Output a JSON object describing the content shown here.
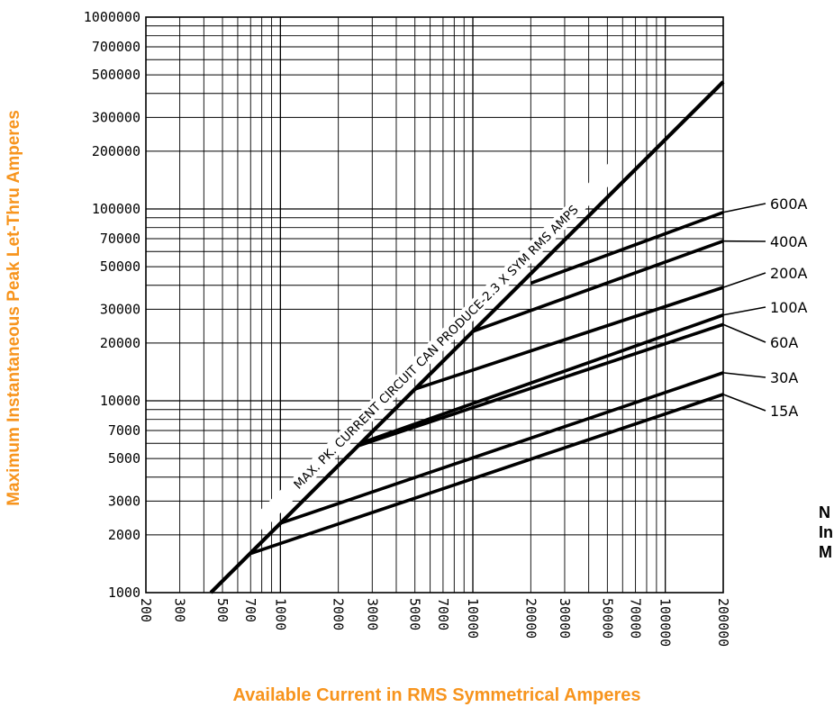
{
  "chart_data": {
    "type": "line",
    "title": "",
    "xlabel": "Available Current in RMS Symmetrical Amperes",
    "ylabel": "Maximum Instantaneous Peak Let-Thru Amperes",
    "xscale": "log",
    "yscale": "log",
    "xlim": [
      200,
      200000
    ],
    "ylim": [
      1000,
      1000000
    ],
    "grid": true,
    "x_tick_labels": [
      "200",
      "300",
      "500",
      "700",
      "1000",
      "2000",
      "3000",
      "5000",
      "7000",
      "10000",
      "20000",
      "30000",
      "50000",
      "70000",
      "100000",
      "200000"
    ],
    "y_tick_labels": [
      "1000000",
      "700000",
      "500000",
      "300000",
      "200000",
      "100000",
      "70000",
      "50000",
      "30000",
      "20000",
      "10000",
      "7000",
      "5000",
      "3000",
      "2000",
      "1000"
    ],
    "series": [
      {
        "name": "MAX. PK. CURRENT CIRCUIT CAN PRODUCE-2.3 X SYM RMS AMPS",
        "x": [
          435,
          200000
        ],
        "y": [
          1000,
          460000
        ]
      },
      {
        "name": "600A",
        "x": [
          20000,
          200000
        ],
        "y": [
          41000,
          96000
        ]
      },
      {
        "name": "400A",
        "x": [
          10000,
          200000
        ],
        "y": [
          23000,
          68000
        ]
      },
      {
        "name": "200A",
        "x": [
          5000,
          200000
        ],
        "y": [
          11500,
          39000
        ]
      },
      {
        "name": "100A",
        "x": [
          2600,
          200000
        ],
        "y": [
          6000,
          28000
        ]
      },
      {
        "name": "60A",
        "x": [
          2500,
          200000
        ],
        "y": [
          5800,
          25000
        ]
      },
      {
        "name": "30A",
        "x": [
          1000,
          200000
        ],
        "y": [
          2300,
          14000
        ]
      },
      {
        "name": "15A",
        "x": [
          700,
          200000
        ],
        "y": [
          1600,
          10800
        ]
      }
    ]
  },
  "note_lines": [
    "N",
    "In",
    "M"
  ]
}
